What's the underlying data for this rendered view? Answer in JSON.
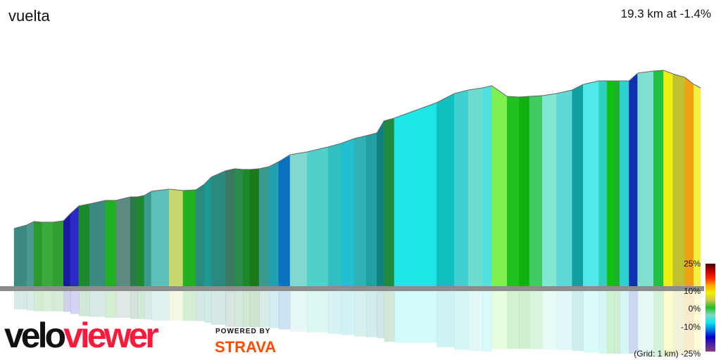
{
  "header": {
    "title": "vuelta",
    "summary": "19.3 km at -1.4%"
  },
  "legend": {
    "ticks": [
      "25%",
      "10%",
      "0%",
      "-10%",
      "-25%"
    ],
    "grid_note": "(Grid: 1 km)"
  },
  "branding": {
    "logo_left": "velo",
    "logo_right": "viewer",
    "powered_by": "POWERED BY",
    "strava": "STRAVA"
  },
  "profile": {
    "total_km": 19.3,
    "segments": [
      [
        "#3d8a80",
        0,
        87
      ],
      [
        "#4a9a90",
        0.36,
        92
      ],
      [
        "#2a9a2a",
        0.56,
        97
      ],
      [
        "#3aaa3a",
        0.79,
        96
      ],
      [
        "#30a030",
        1.09,
        96
      ],
      [
        "#1a1aa0",
        1.39,
        98
      ],
      [
        "#2a2ac8",
        1.58,
        108
      ],
      [
        "#1a8a2a",
        1.82,
        119
      ],
      [
        "#3a8a80",
        2.12,
        122
      ],
      [
        "#20b020",
        2.57,
        127
      ],
      [
        "#5a8a80",
        2.87,
        127
      ],
      [
        "#2a7a4a",
        3.27,
        132
      ],
      [
        "#1a8a2a",
        3.47,
        132
      ],
      [
        "#3a9a90",
        3.66,
        134
      ],
      [
        "#5ac0b8",
        3.86,
        140
      ],
      [
        "#c8d870",
        4.36,
        143
      ],
      [
        "#20b020",
        4.75,
        141
      ],
      [
        "#2a8a80",
        5.11,
        142
      ],
      [
        "#1a9a90",
        5.35,
        150
      ],
      [
        "#2a8a80",
        5.54,
        160
      ],
      [
        "#3a7a60",
        5.94,
        169
      ],
      [
        "#2a8a4a",
        6.2,
        172
      ],
      [
        "#1a8a2a",
        6.44,
        171
      ],
      [
        "#1a7a1a",
        6.63,
        171
      ],
      [
        "#3a9a90",
        6.89,
        172
      ],
      [
        "#20a0b0",
        7.17,
        175
      ],
      [
        "#0a70c0",
        7.44,
        182
      ],
      [
        "#80d8d0",
        7.76,
        192
      ],
      [
        "#50d0c8",
        8.24,
        196
      ],
      [
        "#30c0c0",
        8.83,
        203
      ],
      [
        "#20c0d0",
        9.19,
        208
      ],
      [
        "#30b0b0",
        9.57,
        215
      ],
      [
        "#20a0a0",
        9.9,
        219
      ],
      [
        "#108080",
        10.2,
        223
      ],
      [
        "#208a40",
        10.4,
        240
      ],
      [
        "#1de6e6",
        10.69,
        244
      ],
      [
        "#10c0c0",
        11.88,
        266
      ],
      [
        "#40d0d0",
        12.38,
        279
      ],
      [
        "#70dcd0",
        12.77,
        284
      ],
      [
        "#50e0e0",
        13.17,
        287
      ],
      [
        "#80f050",
        13.43,
        290
      ],
      [
        "#20c020",
        13.86,
        275
      ],
      [
        "#10b010",
        14.2,
        274
      ],
      [
        "#40cc60",
        14.49,
        275
      ],
      [
        "#80e8d0",
        14.85,
        276
      ],
      [
        "#60d8d8",
        15.25,
        279
      ],
      [
        "#10a0a0",
        15.69,
        284
      ],
      [
        "#50e8e8",
        16.0,
        292
      ],
      [
        "#30d0c0",
        16.44,
        297
      ],
      [
        "#10c010",
        16.67,
        297
      ],
      [
        "#20b030",
        16.87,
        297
      ],
      [
        "#30d0d0",
        17.03,
        297
      ],
      [
        "#1030b0",
        17.29,
        297
      ],
      [
        "#80e0d0",
        17.53,
        308
      ],
      [
        "#20c040",
        17.98,
        311
      ],
      [
        "#f0f010",
        18.26,
        312
      ],
      [
        "#c0c030",
        18.52,
        307
      ],
      [
        "#f0a010",
        18.86,
        302
      ],
      [
        "#f0f040",
        19.11,
        292
      ]
    ],
    "end_elev": 287
  }
}
